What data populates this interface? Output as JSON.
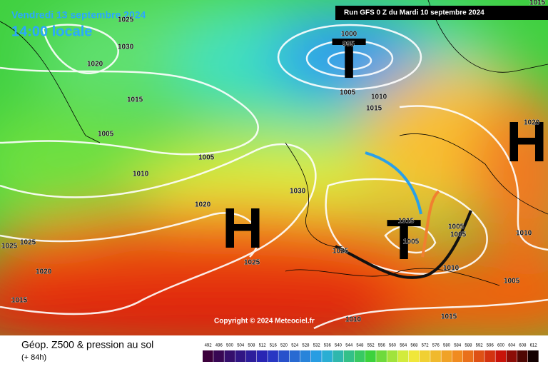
{
  "header": {
    "valid_date": "Vendredi 13 septembre 2024",
    "local_time": "14:00 locale",
    "run": "Run GFS 0 Z du Mardi 10 septembre 2024"
  },
  "map": {
    "centers": [
      "T",
      "H",
      "H",
      "T"
    ],
    "isobar_labels": [
      "1025",
      "1015",
      "1030",
      "1020",
      "1015",
      "1005",
      "1000",
      "995",
      "1005",
      "1010",
      "1015",
      "1005",
      "1010",
      "1030",
      "1020",
      "1025",
      "1025",
      "1020",
      "1015",
      "1025",
      "1025",
      "1015",
      "1005",
      "1005",
      "1005",
      "1010",
      "1010",
      "1005",
      "1015",
      "1010",
      "1020"
    ],
    "copyright": "Copyright © 2024 Meteociel.fr"
  },
  "legend": {
    "title": "Géop. Z500 & pression au sol",
    "lead_time": "(+ 84h)",
    "scale": [
      492,
      496,
      500,
      504,
      508,
      512,
      516,
      520,
      524,
      528,
      532,
      536,
      540,
      544,
      548,
      552,
      556,
      560,
      564,
      568,
      572,
      576,
      580,
      584,
      588,
      592,
      596,
      600,
      604,
      608,
      612
    ]
  }
}
